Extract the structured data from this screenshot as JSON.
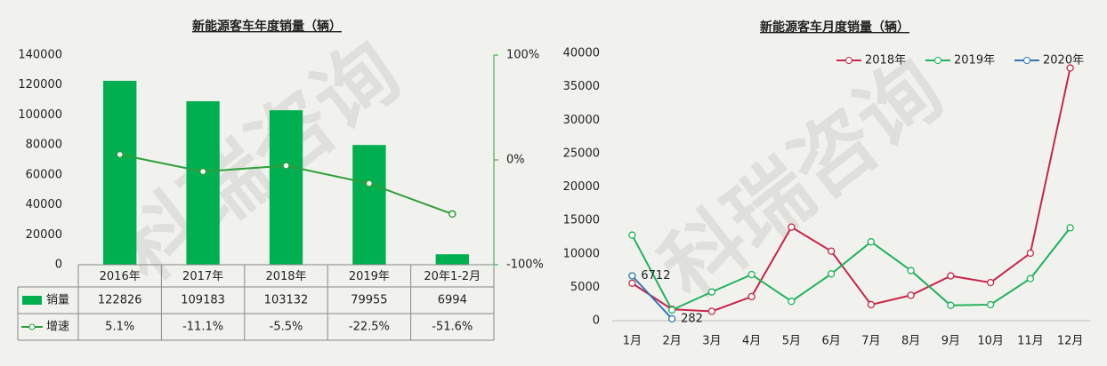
{
  "watermark": "科瑞咨询",
  "chart_data": [
    {
      "type": "bar",
      "title": "新能源客车年度销量（辆）",
      "categories": [
        "2016年",
        "2017年",
        "2018年",
        "2019年",
        "20年1-2月"
      ],
      "series": [
        {
          "name": "销量",
          "color": "#00b050",
          "values": [
            122826,
            109183,
            103132,
            79955,
            6994
          ]
        },
        {
          "name": "增速",
          "type": "line",
          "axis": "y2",
          "color": "#2e9e3a",
          "values": [
            5.1,
            -11.1,
            -5.5,
            -22.5,
            -51.6
          ],
          "value_labels": [
            "5.1%",
            "-11.1%",
            "-5.5%",
            "-22.5%",
            "-51.6%"
          ]
        }
      ],
      "ylim": [
        0,
        140000
      ],
      "yticks": [
        0,
        20000,
        40000,
        60000,
        80000,
        100000,
        120000,
        140000
      ],
      "y2lim": [
        -100,
        100
      ],
      "y2ticks": [
        {
          "value": -100,
          "label": "-100%"
        },
        {
          "value": 0,
          "label": "0%"
        },
        {
          "value": 100,
          "label": "100%"
        }
      ],
      "data_table": true
    },
    {
      "type": "line",
      "title": "新能源客车月度销量（辆）",
      "categories": [
        "1月",
        "2月",
        "3月",
        "4月",
        "5月",
        "6月",
        "7月",
        "8月",
        "9月",
        "10月",
        "11月",
        "12月"
      ],
      "series": [
        {
          "name": "2018年",
          "color": "#c8264a",
          "values": [
            5600,
            1700,
            1400,
            3600,
            14000,
            10400,
            2400,
            3800,
            6700,
            5700,
            10100,
            37800
          ]
        },
        {
          "name": "2019年",
          "color": "#1fb25a",
          "values": [
            12800,
            1600,
            4300,
            6900,
            2900,
            7000,
            11800,
            7500,
            2300,
            2400,
            6300,
            13900
          ]
        },
        {
          "name": "2020年",
          "color": "#2e75b6",
          "values": [
            6712,
            282,
            null,
            null,
            null,
            null,
            null,
            null,
            null,
            null,
            null,
            null
          ],
          "data_labels": true
        }
      ],
      "ylim": [
        0,
        40000
      ],
      "yticks": [
        0,
        5000,
        10000,
        15000,
        20000,
        25000,
        30000,
        35000,
        40000
      ],
      "legend": "top-right"
    }
  ]
}
